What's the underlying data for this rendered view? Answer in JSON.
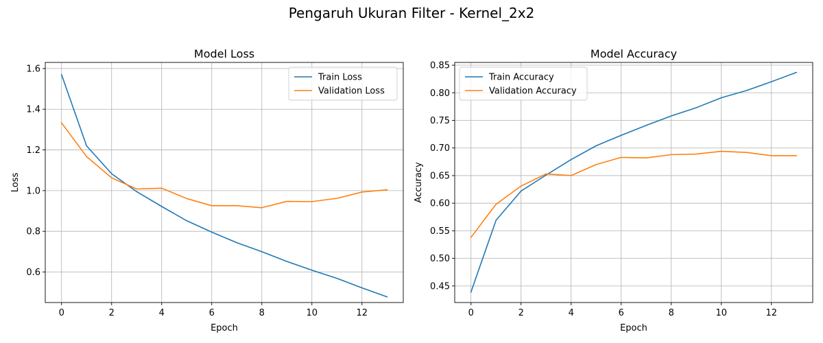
{
  "figure": {
    "suptitle": "Pengaruh Ukuran Filter - Kernel_2x2"
  },
  "colors": {
    "train": "#1f77b4",
    "validation": "#ff7f0e",
    "grid": "#b0b0b0"
  },
  "chart_data": [
    {
      "type": "line",
      "title": "Model Loss",
      "xlabel": "Epoch",
      "ylabel": "Loss",
      "grid": true,
      "legend_position": "top-right",
      "x": [
        0,
        1,
        2,
        3,
        4,
        5,
        6,
        7,
        8,
        9,
        10,
        11,
        12,
        13
      ],
      "xlim": [
        -0.65,
        13.65
      ],
      "ylim": [
        0.45,
        1.63
      ],
      "xticks": [
        0,
        2,
        4,
        6,
        8,
        10,
        12
      ],
      "yticks": [
        0.6,
        0.8,
        1.0,
        1.2,
        1.4,
        1.6
      ],
      "ytick_labels": [
        "0.6",
        "0.8",
        "1.0",
        "1.2",
        "1.4",
        "1.6"
      ],
      "series": [
        {
          "name": "Train Loss",
          "color": "#1f77b4",
          "values": [
            1.57,
            1.22,
            1.083,
            0.995,
            0.922,
            0.852,
            0.796,
            0.744,
            0.7,
            0.652,
            0.609,
            0.569,
            0.522,
            0.478
          ]
        },
        {
          "name": "Validation Loss",
          "color": "#ff7f0e",
          "values": [
            1.333,
            1.167,
            1.063,
            1.008,
            1.012,
            0.961,
            0.926,
            0.926,
            0.916,
            0.947,
            0.946,
            0.962,
            0.993,
            1.004
          ]
        }
      ]
    },
    {
      "type": "line",
      "title": "Model Accuracy",
      "xlabel": "Epoch",
      "ylabel": "Accuracy",
      "grid": true,
      "legend_position": "top-left",
      "x": [
        0,
        1,
        2,
        3,
        4,
        5,
        6,
        7,
        8,
        9,
        10,
        11,
        12,
        13
      ],
      "xlim": [
        -0.65,
        13.65
      ],
      "ylim": [
        0.42,
        0.855
      ],
      "xticks": [
        0,
        2,
        4,
        6,
        8,
        10,
        12
      ],
      "yticks": [
        0.45,
        0.5,
        0.55,
        0.6,
        0.65,
        0.7,
        0.75,
        0.8,
        0.85
      ],
      "ytick_labels": [
        "0.45",
        "0.50",
        "0.55",
        "0.60",
        "0.65",
        "0.70",
        "0.75",
        "0.80",
        "0.85"
      ],
      "series": [
        {
          "name": "Train Accuracy",
          "color": "#1f77b4",
          "values": [
            0.439,
            0.569,
            0.622,
            0.651,
            0.679,
            0.704,
            0.723,
            0.741,
            0.758,
            0.773,
            0.791,
            0.804,
            0.82,
            0.837
          ]
        },
        {
          "name": "Validation Accuracy",
          "color": "#ff7f0e",
          "values": [
            0.538,
            0.598,
            0.631,
            0.653,
            0.65,
            0.67,
            0.683,
            0.682,
            0.688,
            0.689,
            0.694,
            0.692,
            0.686,
            0.686
          ]
        }
      ]
    }
  ]
}
